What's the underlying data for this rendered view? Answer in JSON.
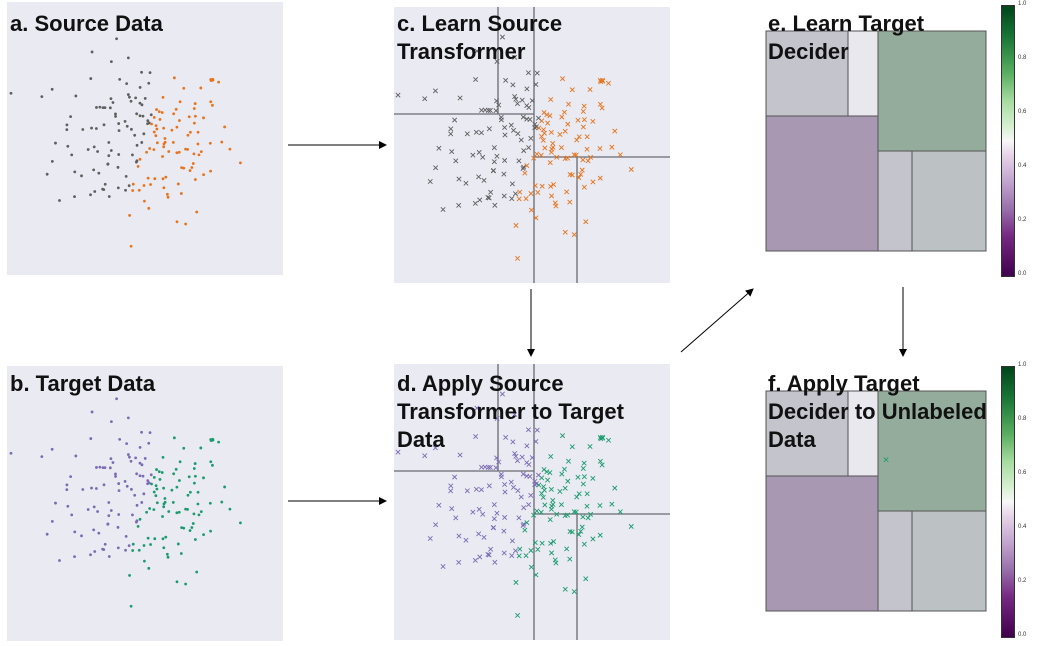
{
  "panels": {
    "a": {
      "title": "a. Source Data"
    },
    "b": {
      "title": "b. Target Data"
    },
    "c": {
      "title": "c. Learn Source\nTransformer"
    },
    "d": {
      "title": "d. Apply Source\nTransformer to Target\nData"
    },
    "e": {
      "title": "e. Learn Target\nDecider"
    },
    "f": {
      "title": "f. Apply Target\nDecider to Unlabeled\nData"
    }
  },
  "colorbar": {
    "ticks": [
      "1.0",
      "0.8",
      "0.6",
      "0.4",
      "0.2",
      "0.0"
    ]
  },
  "colors": {
    "panel_bg": "#eaeaf2",
    "source_class_a": "#5f5f5f",
    "source_class_b": "#e8731c",
    "target_class_a": "#7b6bb5",
    "target_class_b": "#1a9b6c",
    "region_purple": "#a898b2",
    "region_green": "#94ac9c",
    "region_grey": "#c4c4cc",
    "region_light": "#e8e8ee",
    "region_grey2": "#bcc1c4"
  }
}
